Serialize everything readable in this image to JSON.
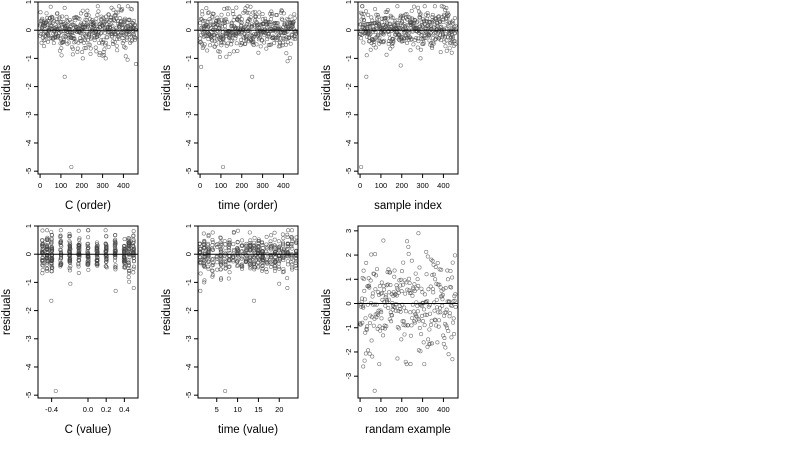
{
  "figure": {
    "background": "#ffffff",
    "point_color": "#444444",
    "marker": "open-circle"
  },
  "chart_data": [
    {
      "type": "scatter",
      "xlabel": "C (order)",
      "ylabel": "residuals",
      "xlim": [
        -10,
        470
      ],
      "ylim": [
        -5.1,
        1.0
      ],
      "xticks": [
        0,
        100,
        200,
        300,
        400
      ],
      "xtick_labels": [
        "0",
        "100",
        "200",
        "300",
        "400"
      ],
      "yticks": [
        1,
        0,
        -1,
        -2,
        -3,
        -4,
        -5
      ],
      "ytick_labels": [
        "1",
        "0",
        "-1",
        "-2",
        "-3",
        "-4",
        "-5"
      ],
      "reference_line_y": 0,
      "data": {
        "x_mode": "index",
        "n": 460,
        "y_mean": 0.02,
        "y_sd": 0.33,
        "outliers": [
          [
            150,
            -4.85
          ],
          [
            118,
            -1.65
          ],
          [
            205,
            -1.0
          ],
          [
            300,
            -0.9
          ],
          [
            420,
            -1.05
          ],
          [
            460,
            -1.2
          ],
          [
            270,
            -0.75
          ]
        ]
      }
    },
    {
      "type": "scatter",
      "xlabel": "time (order)",
      "ylabel": "residuals",
      "xlim": [
        -10,
        470
      ],
      "ylim": [
        -5.1,
        1.0
      ],
      "xticks": [
        0,
        100,
        200,
        300,
        400
      ],
      "xtick_labels": [
        "0",
        "100",
        "200",
        "300",
        "400"
      ],
      "yticks": [
        1,
        0,
        -1,
        -2,
        -3,
        -4,
        -5
      ],
      "ytick_labels": [
        "1",
        "0",
        "-1",
        "-2",
        "-3",
        "-4",
        "-5"
      ],
      "reference_line_y": 0,
      "data": {
        "x_mode": "index",
        "n": 460,
        "y_mean": 0.02,
        "y_sd": 0.33,
        "outliers": [
          [
            110,
            -4.85
          ],
          [
            250,
            -1.65
          ],
          [
            5,
            -1.3
          ],
          [
            95,
            -0.95
          ],
          [
            420,
            -1.1
          ],
          [
            280,
            -0.8
          ]
        ]
      }
    },
    {
      "type": "scatter",
      "xlabel": "sample index",
      "ylabel": "residuals",
      "xlim": [
        -10,
        470
      ],
      "ylim": [
        -5.1,
        1.0
      ],
      "xticks": [
        0,
        100,
        200,
        300,
        400
      ],
      "xtick_labels": [
        "0",
        "100",
        "200",
        "300",
        "400"
      ],
      "yticks": [
        1,
        0,
        -1,
        -2,
        -3,
        -4,
        -5
      ],
      "ytick_labels": [
        "1",
        "0",
        "-1",
        "-2",
        "-3",
        "-4",
        "-5"
      ],
      "reference_line_y": 0,
      "data": {
        "x_mode": "index",
        "n": 460,
        "y_mean": 0.05,
        "y_sd": 0.35,
        "outliers": [
          [
            5,
            -4.85
          ],
          [
            30,
            -1.65
          ],
          [
            195,
            -1.25
          ],
          [
            290,
            -1.0
          ],
          [
            440,
            -0.8
          ]
        ]
      }
    },
    {
      "type": "scatter",
      "xlabel": "C (value)",
      "ylabel": "residuals",
      "xlim": [
        -0.55,
        0.55
      ],
      "ylim": [
        -5.1,
        1.0
      ],
      "xticks": [
        -0.4,
        0.0,
        0.2,
        0.4
      ],
      "xtick_labels": [
        "-0.4",
        "0.0",
        "0.2",
        "0.4"
      ],
      "yticks": [
        1,
        0,
        -1,
        -2,
        -3,
        -4,
        -5
      ],
      "ytick_labels": [
        "1",
        "0",
        "-1",
        "-2",
        "-3",
        "-4",
        "-5"
      ],
      "reference_line_y": 0,
      "data": {
        "x_mode": "levels",
        "n": 460,
        "y_mean": 0.02,
        "y_sd": 0.33,
        "levels": [
          -0.5,
          -0.45,
          -0.4,
          -0.3,
          -0.2,
          -0.1,
          0.0,
          0.1,
          0.2,
          0.3,
          0.4,
          0.45,
          0.5
        ],
        "outliers": [
          [
            -0.35,
            -4.85
          ],
          [
            -0.4,
            -1.65
          ],
          [
            -0.2,
            -1.05
          ],
          [
            0.3,
            -1.3
          ],
          [
            0.5,
            -1.2
          ]
        ]
      }
    },
    {
      "type": "scatter",
      "xlabel": "time (value)",
      "ylabel": "residuals",
      "xlim": [
        0.5,
        24.5
      ],
      "ylim": [
        -5.1,
        1.0
      ],
      "xticks": [
        5,
        10,
        15,
        20
      ],
      "xtick_labels": [
        "5",
        "10",
        "15",
        "20"
      ],
      "yticks": [
        1,
        0,
        -1,
        -2,
        -3,
        -4,
        -5
      ],
      "ytick_labels": [
        "1",
        "0",
        "-1",
        "-2",
        "-3",
        "-4",
        "-5"
      ],
      "reference_line_y": 0,
      "data": {
        "x_mode": "levels",
        "n": 460,
        "y_mean": 0.02,
        "y_sd": 0.33,
        "levels": [
          1,
          2,
          3,
          4,
          5,
          6,
          7,
          8,
          9,
          10,
          11,
          12,
          13,
          14,
          15,
          16,
          17,
          18,
          19,
          20,
          21,
          22,
          23,
          24
        ],
        "outliers": [
          [
            7,
            -4.85
          ],
          [
            14,
            -1.65
          ],
          [
            1,
            -1.3
          ],
          [
            6,
            -0.9
          ],
          [
            20,
            -1.05
          ],
          [
            22,
            -1.2
          ]
        ]
      }
    },
    {
      "type": "scatter",
      "xlabel": "randam example",
      "ylabel": "residuals",
      "xlim": [
        -10,
        470
      ],
      "ylim": [
        -3.9,
        3.2
      ],
      "xticks": [
        0,
        100,
        200,
        300,
        400
      ],
      "xtick_labels": [
        "0",
        "100",
        "200",
        "300",
        "400"
      ],
      "yticks": [
        3,
        2,
        1,
        0,
        -1,
        -2,
        -3
      ],
      "ytick_labels": [
        "3",
        "2",
        "1",
        "0",
        "-1",
        "-2",
        "-3"
      ],
      "reference_line_y": 0,
      "data": {
        "x_mode": "index",
        "n": 300,
        "y_mean": 0.0,
        "y_sd": 1.0,
        "outliers": [
          [
            70,
            -3.6
          ],
          [
            280,
            2.9
          ],
          [
            15,
            -2.6
          ]
        ]
      }
    }
  ]
}
